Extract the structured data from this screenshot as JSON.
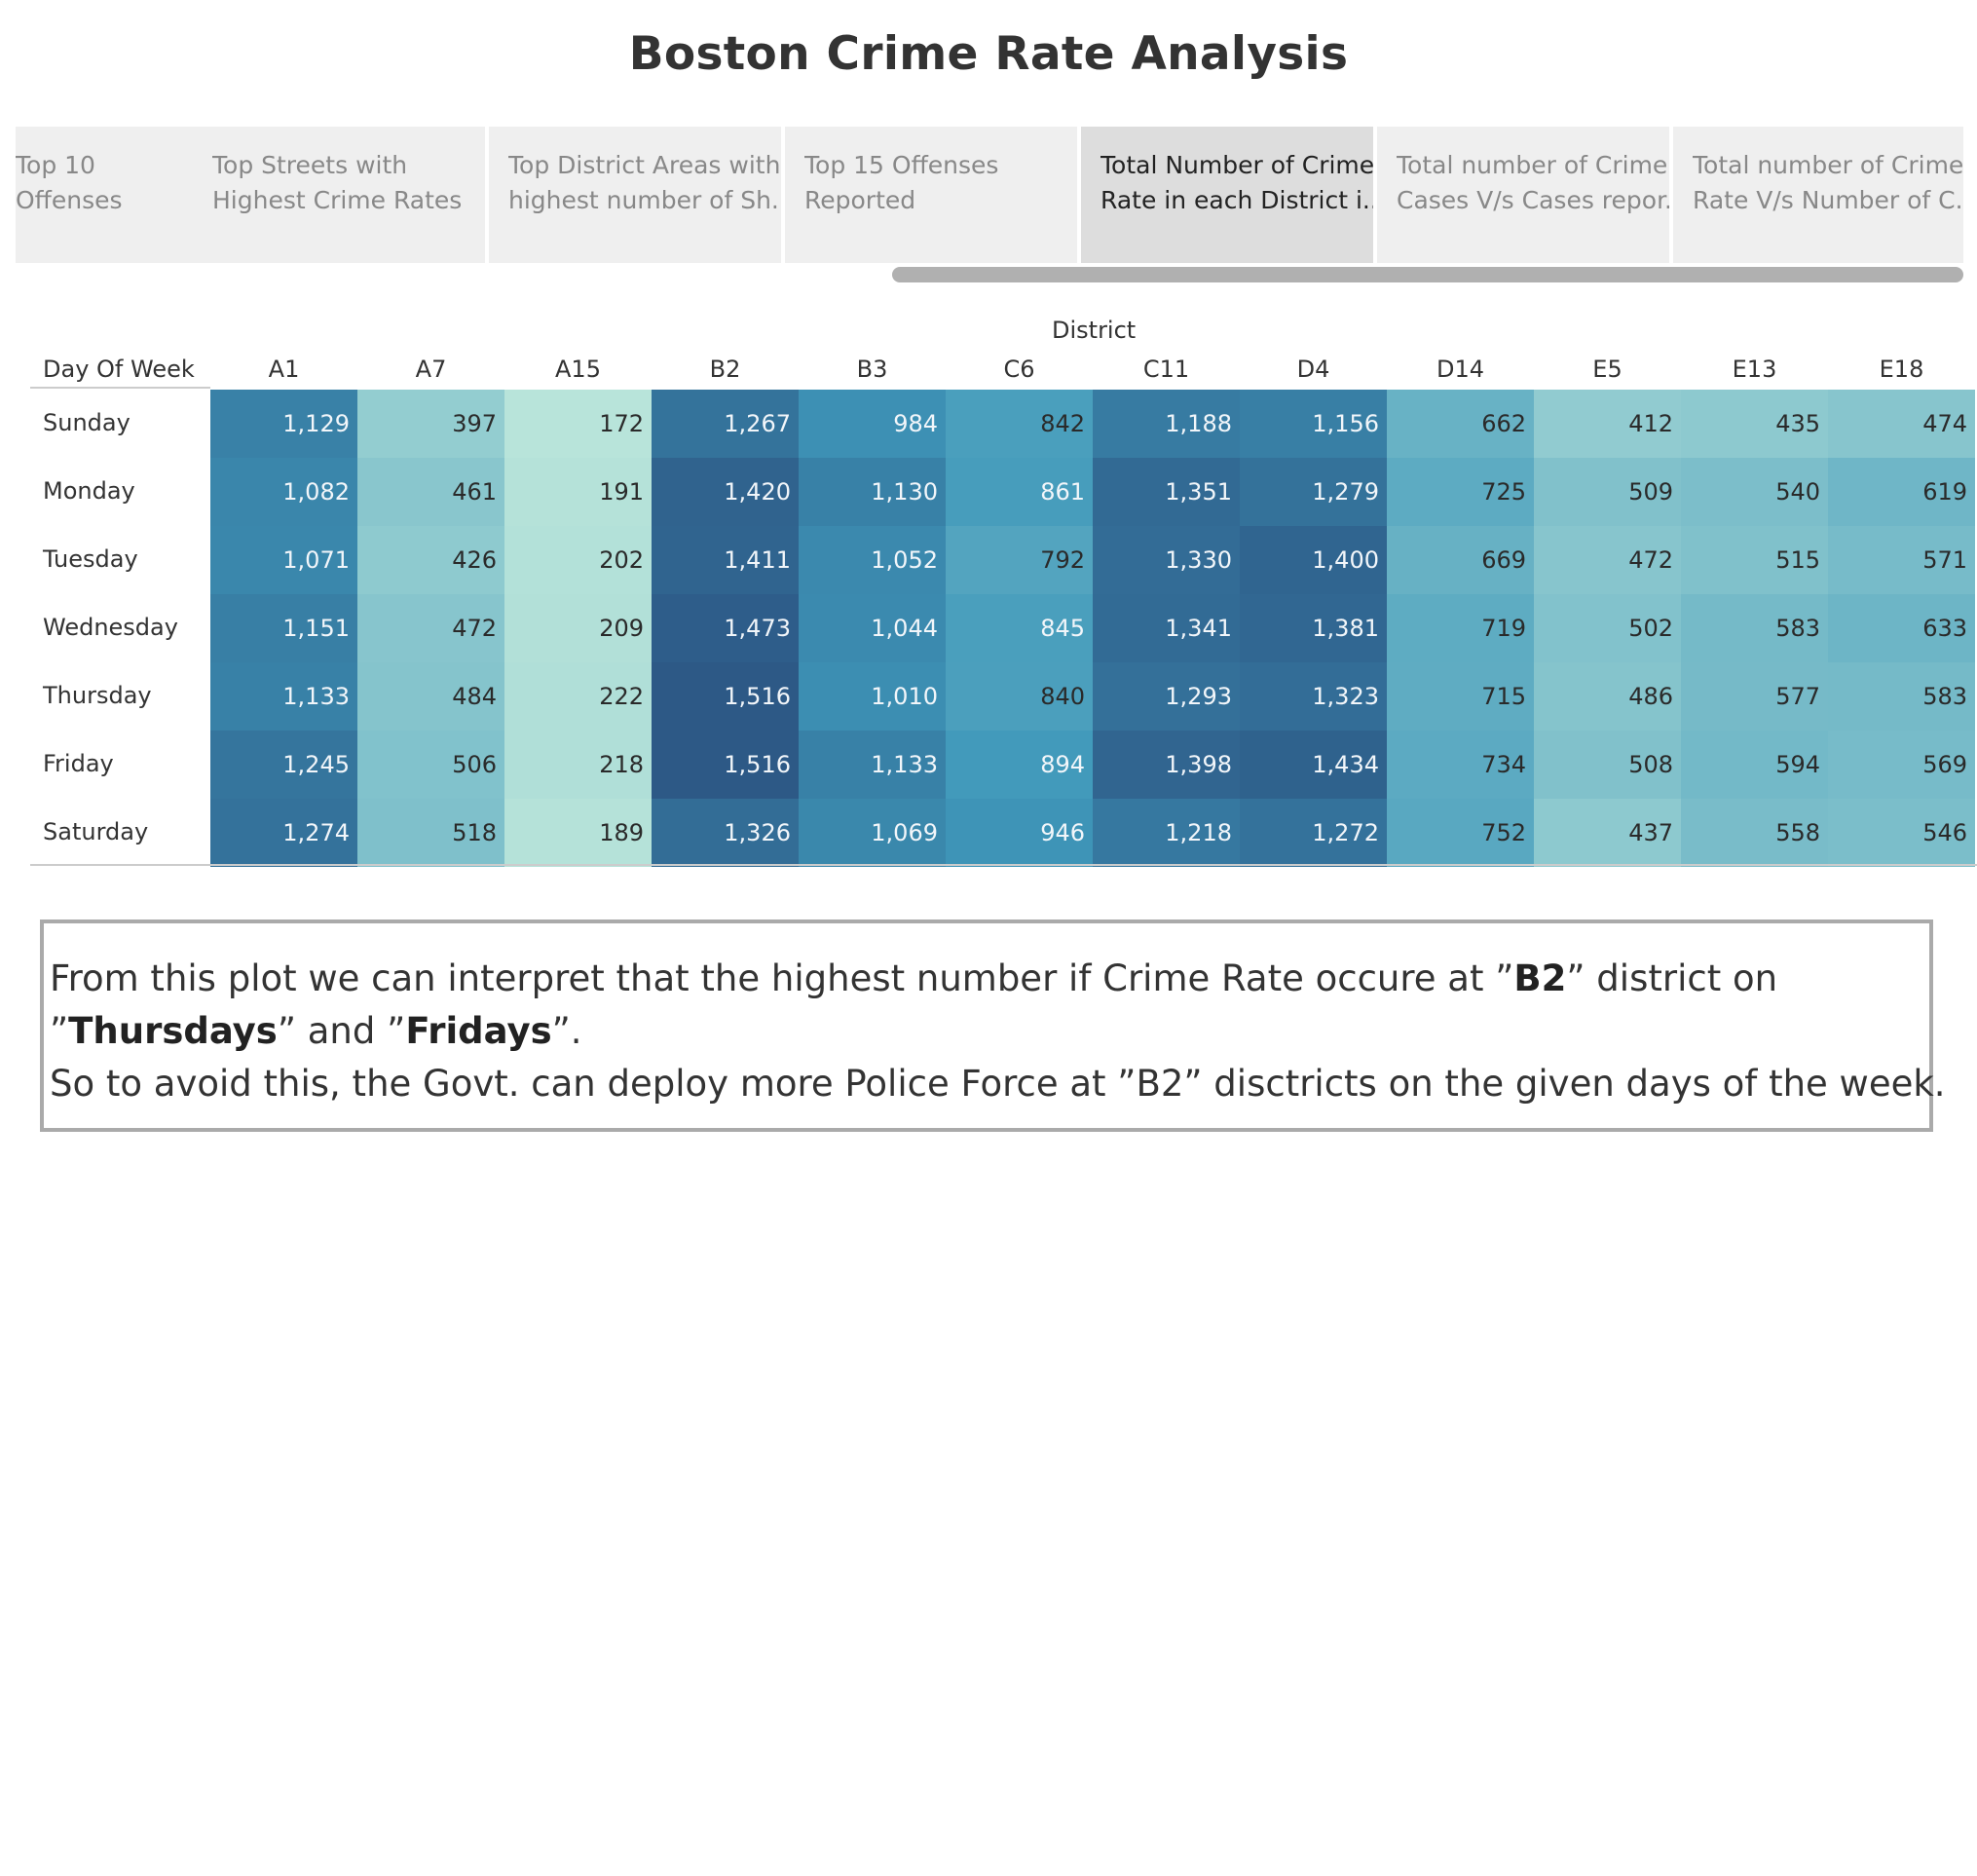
{
  "title": "Boston Crime Rate Analysis",
  "tabs": [
    {
      "label1": "Top 10",
      "label2": "Offenses",
      "active": false
    },
    {
      "label1": "Top Streets with",
      "label2": "Highest Crime Rates",
      "active": false
    },
    {
      "label1": "Top District Areas with",
      "label2": "highest number of Sh..",
      "active": false
    },
    {
      "label1": "Top 15 Offenses",
      "label2": "Reported",
      "active": false
    },
    {
      "label1": "Total Number of Crime",
      "label2": "Rate in each District i..",
      "active": true
    },
    {
      "label1": "Total number of Crime",
      "label2": "Cases V/s Cases repor..",
      "active": false
    },
    {
      "label1": "Total number of Crime",
      "label2": "Rate V/s Number of C..",
      "active": false
    }
  ],
  "table": {
    "column_group_label": "District",
    "row_header_label": "Day Of Week"
  },
  "chart_data": {
    "type": "heatmap",
    "x_label": "District",
    "y_label": "Day Of Week",
    "columns": [
      "A1",
      "A7",
      "A15",
      "B2",
      "B3",
      "C6",
      "C11",
      "D4",
      "D14",
      "E5",
      "E13",
      "E18"
    ],
    "rows": [
      "Sunday",
      "Monday",
      "Tuesday",
      "Wednesday",
      "Thursday",
      "Friday",
      "Saturday"
    ],
    "values": [
      [
        1129,
        397,
        172,
        1267,
        984,
        842,
        1188,
        1156,
        662,
        412,
        435,
        474
      ],
      [
        1082,
        461,
        191,
        1420,
        1130,
        861,
        1351,
        1279,
        725,
        509,
        540,
        619
      ],
      [
        1071,
        426,
        202,
        1411,
        1052,
        792,
        1330,
        1400,
        669,
        472,
        515,
        571
      ],
      [
        1151,
        472,
        209,
        1473,
        1044,
        845,
        1341,
        1381,
        719,
        502,
        583,
        633
      ],
      [
        1133,
        484,
        222,
        1516,
        1010,
        840,
        1293,
        1323,
        715,
        486,
        577,
        583
      ],
      [
        1245,
        506,
        218,
        1516,
        1133,
        894,
        1398,
        1434,
        734,
        508,
        594,
        569
      ],
      [
        1274,
        518,
        189,
        1326,
        1069,
        946,
        1218,
        1272,
        752,
        437,
        558,
        546
      ]
    ],
    "color_scale": {
      "low": "#b8e4da",
      "high": "#2d5986"
    }
  },
  "note": {
    "line1_pre": "From this plot we can interpret that the highest number if Crime Rate occure at ”",
    "line1_bold": "B2",
    "line1_post": "” district on",
    "line2_q1": "”",
    "line2_bold1": "Thursdays",
    "line2_mid": "” and ”",
    "line2_bold2": "Fridays",
    "line2_end": "”.",
    "line3": "So to avoid this, the Govt. can deploy more Police Force at ”B2” disctricts on the given days of the week."
  }
}
